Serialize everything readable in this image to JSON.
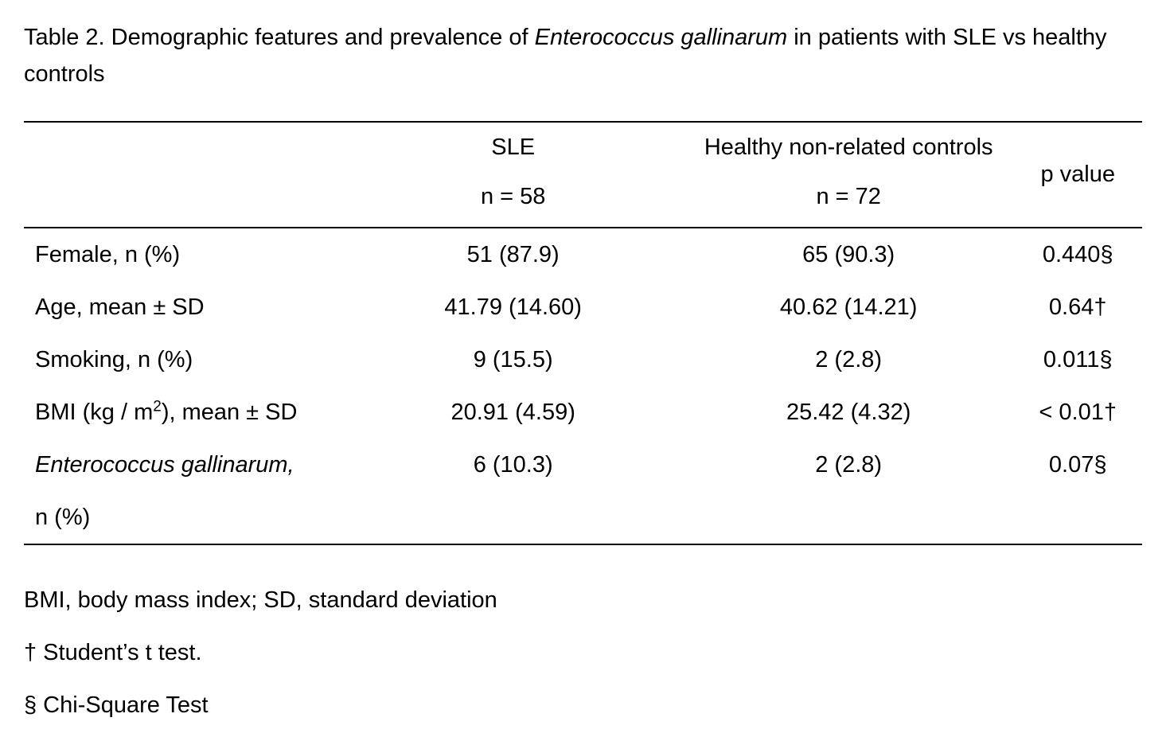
{
  "caption": {
    "prefix": "Table 2. Demographic features and prevalence of ",
    "species": "Enterococcus gallinarum",
    "suffix": " in patients with SLE vs healthy controls"
  },
  "table": {
    "headers": {
      "sle": {
        "line1": "SLE",
        "line2": "n = 58"
      },
      "controls": {
        "line1": "Healthy non-related controls",
        "line2": "n = 72"
      },
      "p_value": "p value"
    },
    "rows": [
      {
        "label": "Female, n (%)",
        "sle": "51 (87.9)",
        "controls": "65 (90.3)",
        "p": "0.440§"
      },
      {
        "label": "Age, mean ± SD",
        "sle": "41.79 (14.60)",
        "controls": "40.62 (14.21)",
        "p": "0.64†"
      },
      {
        "label": "Smoking, n (%)",
        "sle": "9 (15.5)",
        "controls": "2 (2.8)",
        "p": "0.011§"
      },
      {
        "label_pre": "BMI (kg / m",
        "label_sup": "2",
        "label_post": "), mean ± SD",
        "sle": "20.91 (4.59)",
        "controls": "25.42 (4.32)",
        "p": "< 0.01†"
      },
      {
        "label_italic": "Enterococcus gallinarum,",
        "label_rest": "n (%)",
        "sle": "6 (10.3)",
        "controls": "2 (2.8)",
        "p": "0.07§"
      }
    ]
  },
  "footnotes": [
    "BMI, body mass index; SD, standard deviation",
    "† Student’s t test.",
    "§ Chi-Square Test"
  ]
}
